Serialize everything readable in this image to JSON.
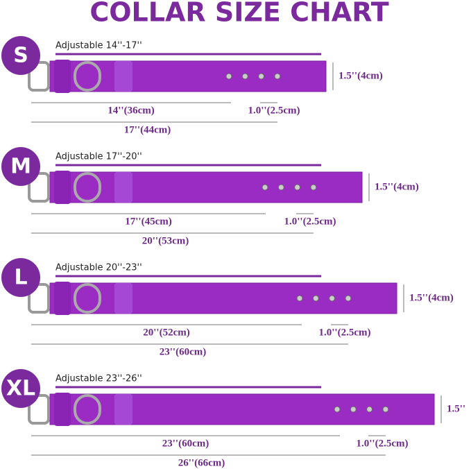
{
  "header": {
    "title": "COLLAR SIZE CHART"
  },
  "sizes": [
    {
      "label": "S",
      "adjustable": "Adjustable 14''-17''",
      "width": "1.5''(4cm)",
      "min_length": "14''(36cm)",
      "hole_spacing": "1.0''(2.5cm)",
      "max_length": "17''(44cm)"
    },
    {
      "label": "M",
      "adjustable": "Adjustable 17''-20''",
      "width": "1.5''(4cm)",
      "min_length": "17''(45cm)",
      "hole_spacing": "1.0''(2.5cm)",
      "max_length": "20''(53cm)"
    },
    {
      "label": "L",
      "adjustable": "Adjustable 20''-23''",
      "width": "1.5''(4cm)",
      "min_length": "20''(52cm)",
      "hole_spacing": "1.0''(2.5cm)",
      "max_length": "23''(60cm)"
    },
    {
      "label": "XL",
      "adjustable": "Adjustable 23''-26''",
      "width": "1.5''",
      "min_length": "23''(60cm)",
      "hole_spacing": "1.0''(2.5cm)",
      "max_length": "26''(66cm)"
    }
  ]
}
